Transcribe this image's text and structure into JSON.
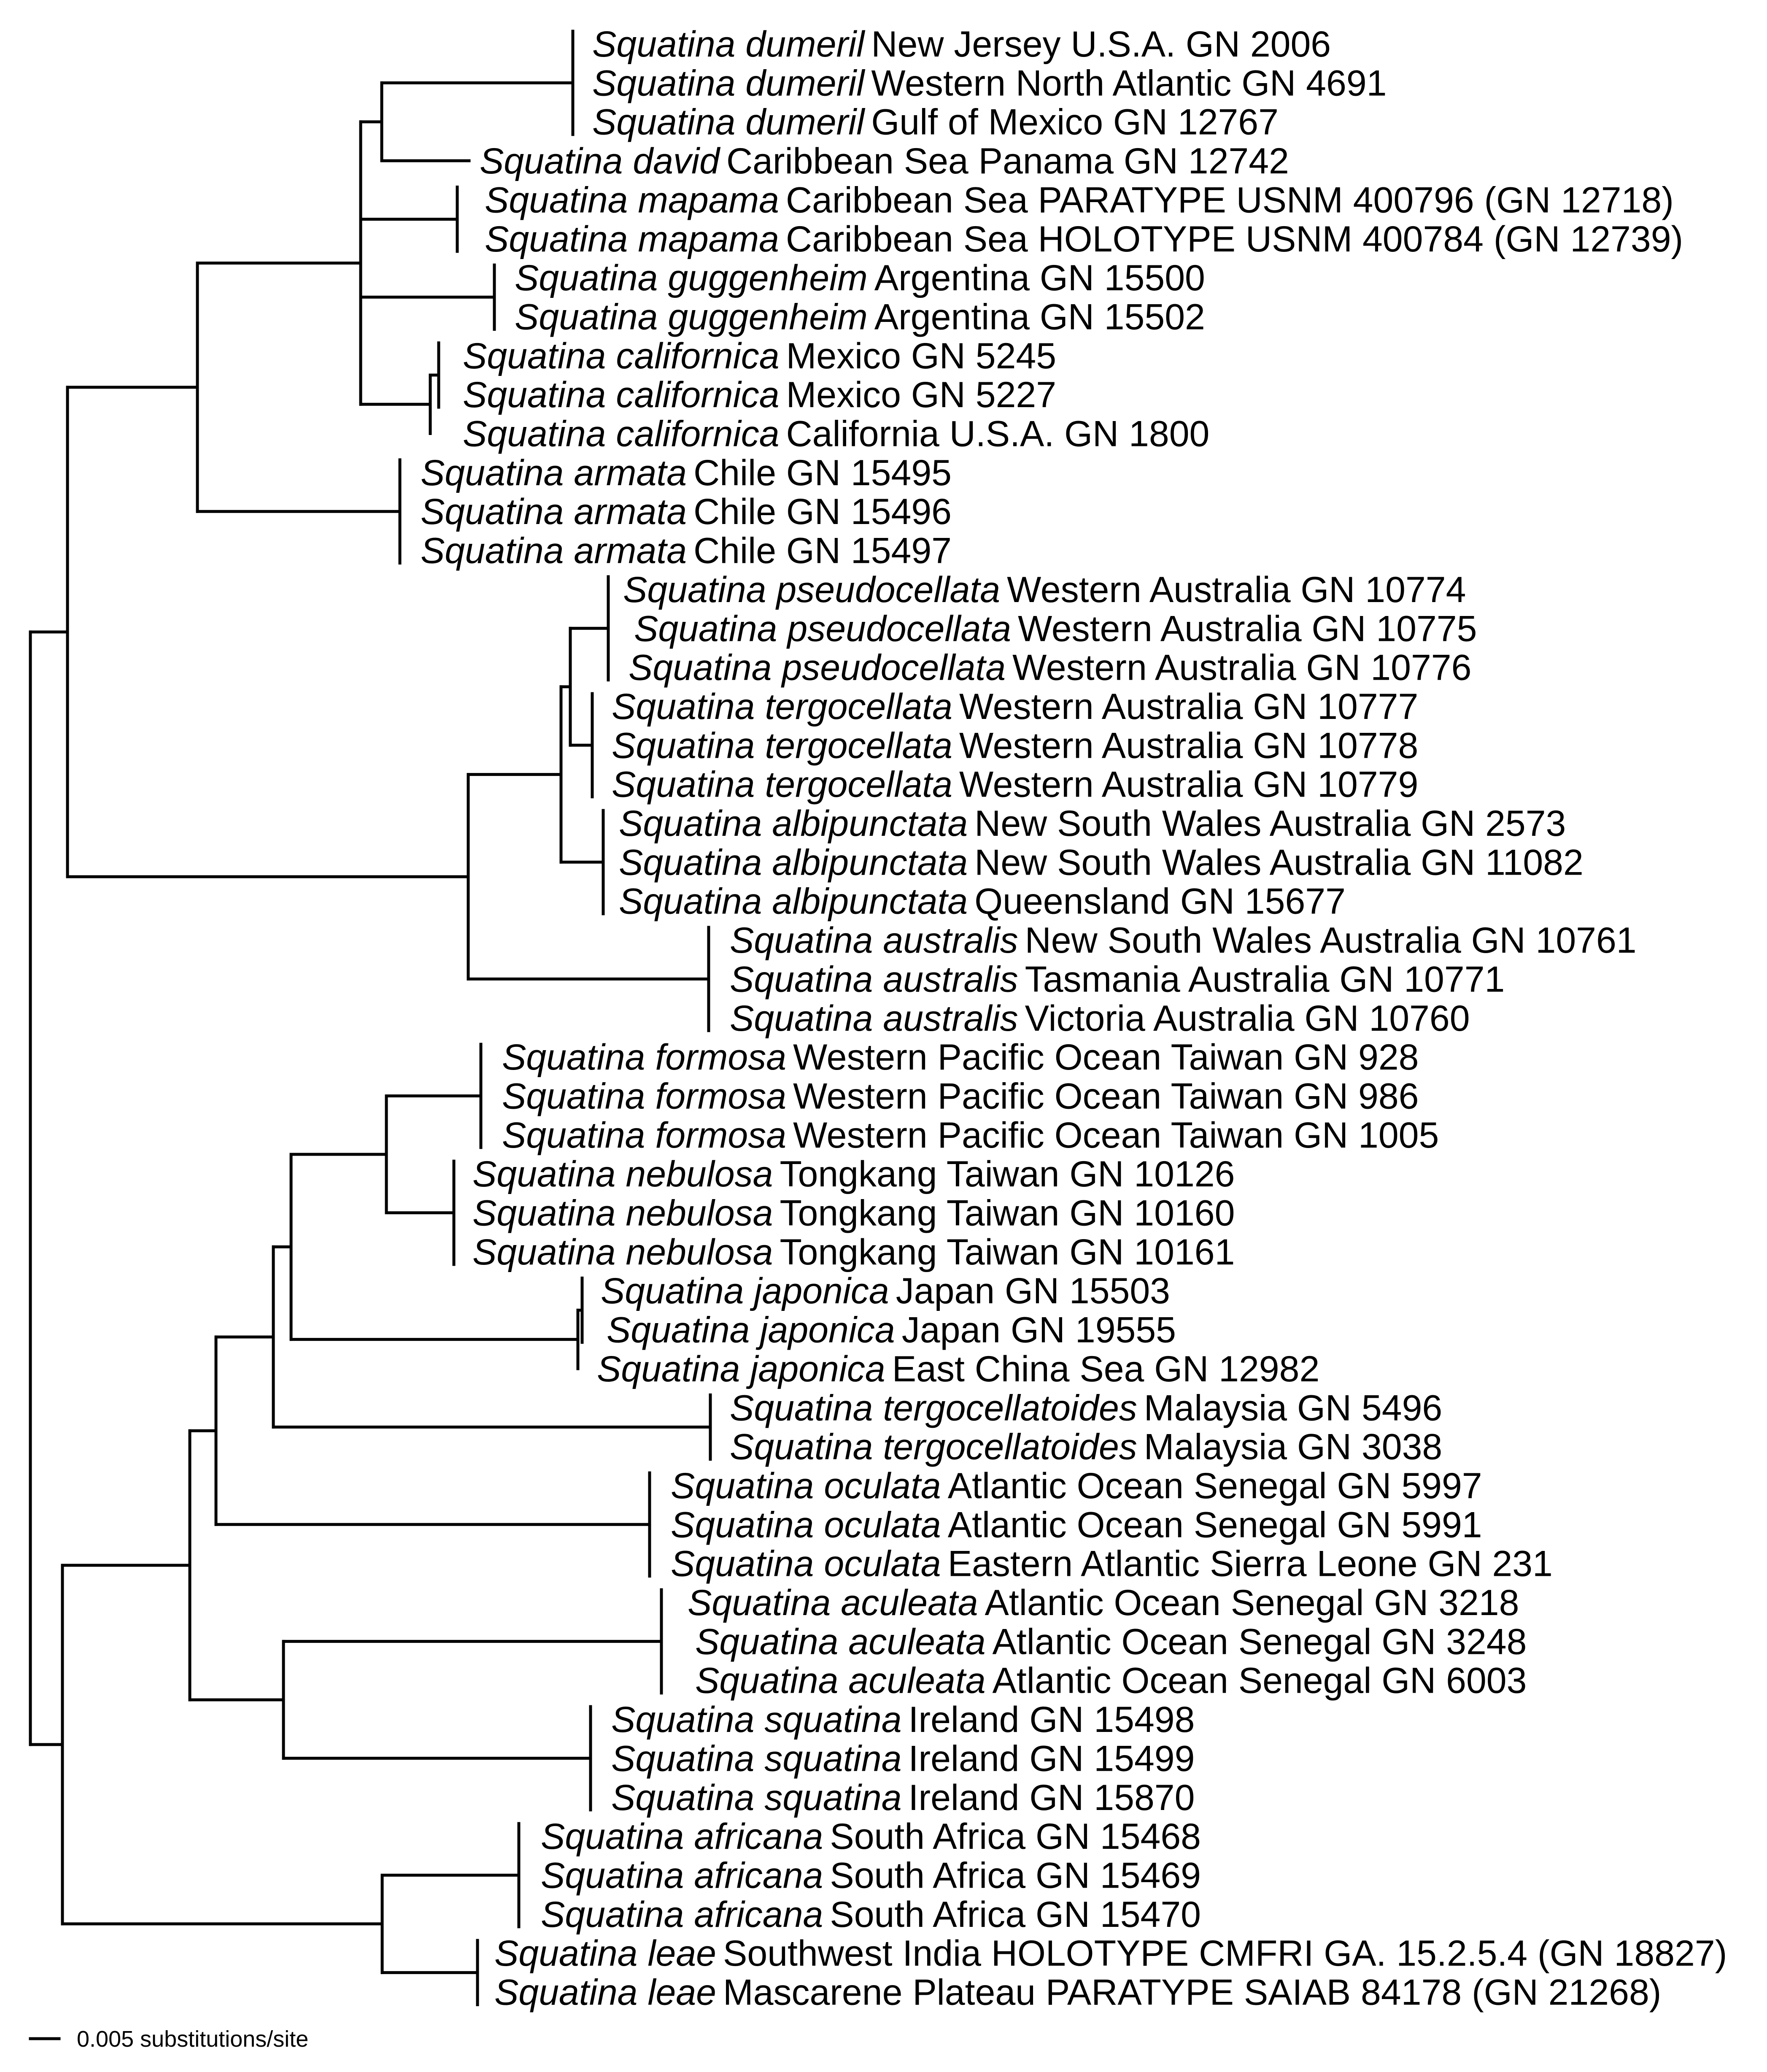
{
  "tree": {
    "leaves": [
      {
        "species": "Squatina dumeril",
        "detail": "New Jersey U.S.A. GN 2006"
      },
      {
        "species": "Squatina dumeril",
        "detail": "Western North Atlantic GN 4691"
      },
      {
        "species": "Squatina dumeril",
        "detail": "Gulf of Mexico GN 12767"
      },
      {
        "species": "Squatina david",
        "detail": "Caribbean Sea Panama GN 12742"
      },
      {
        "species": "Squatina mapama",
        "detail": "Caribbean Sea PARATYPE USNM 400796 (GN 12718)"
      },
      {
        "species": "Squatina mapama",
        "detail": "Caribbean Sea HOLOTYPE USNM 400784 (GN 12739)"
      },
      {
        "species": "Squatina guggenheim",
        "detail": "Argentina GN 15500"
      },
      {
        "species": "Squatina guggenheim",
        "detail": "Argentina GN 15502"
      },
      {
        "species": "Squatina californica",
        "detail": "Mexico GN 5245"
      },
      {
        "species": "Squatina californica",
        "detail": "Mexico GN 5227"
      },
      {
        "species": "Squatina californica",
        "detail": "California  U.S.A. GN 1800"
      },
      {
        "species": "Squatina armata",
        "detail": "Chile GN 15495"
      },
      {
        "species": "Squatina armata",
        "detail": "Chile GN 15496"
      },
      {
        "species": "Squatina armata",
        "detail": "Chile GN 15497"
      },
      {
        "species": "Squatina pseudocellata",
        "detail": "Western Australia GN 10774"
      },
      {
        "species": "Squatina pseudocellata",
        "detail": "Western Australia GN 10775"
      },
      {
        "species": "Squatina pseudocellata",
        "detail": "Western Australia GN 10776"
      },
      {
        "species": "Squatina tergocellata",
        "detail": "Western Australia GN 10777"
      },
      {
        "species": "Squatina tergocellata",
        "detail": "Western Australia GN 10778"
      },
      {
        "species": "Squatina tergocellata",
        "detail": "Western Australia GN 10779"
      },
      {
        "species": "Squatina albipunctata",
        "detail": "New South Wales Australia GN 2573"
      },
      {
        "species": "Squatina albipunctata",
        "detail": "New South Wales Australia GN 11082"
      },
      {
        "species": "Squatina albipunctata",
        "detail": "Queensland GN 15677"
      },
      {
        "species": "Squatina australis",
        "detail": "New South Wales Australia GN 10761"
      },
      {
        "species": "Squatina australis",
        "detail": "Tasmania Australia GN 10771"
      },
      {
        "species": "Squatina australis",
        "detail": "Victoria Australia GN 10760"
      },
      {
        "species": "Squatina formosa",
        "detail": "Western Pacific Ocean Taiwan GN 928"
      },
      {
        "species": "Squatina formosa",
        "detail": "Western Pacific Ocean Taiwan GN 986"
      },
      {
        "species": "Squatina formosa",
        "detail": "Western Pacific Ocean Taiwan GN 1005"
      },
      {
        "species": "Squatina nebulosa",
        "detail": "Tongkang Taiwan GN 10126"
      },
      {
        "species": "Squatina nebulosa",
        "detail": "Tongkang Taiwan GN 10160"
      },
      {
        "species": "Squatina nebulosa",
        "detail": "Tongkang Taiwan GN 10161"
      },
      {
        "species": "Squatina japonica",
        "detail": "Japan GN 15503"
      },
      {
        "species": "Squatina japonica",
        "detail": "Japan GN 19555"
      },
      {
        "species": "Squatina japonica",
        "detail": "East China Sea GN 12982"
      },
      {
        "species": "Squatina tergocellatoides",
        "detail": "Malaysia GN 5496"
      },
      {
        "species": "Squatina tergocellatoides",
        "detail": "Malaysia GN 3038"
      },
      {
        "species": "Squatina oculata",
        "detail": "Atlantic Ocean Senegal GN 5997"
      },
      {
        "species": "Squatina oculata",
        "detail": "Atlantic Ocean Senegal GN 5991"
      },
      {
        "species": "Squatina oculata",
        "detail": "Eastern Atlantic Sierra Leone GN 231"
      },
      {
        "species": "Squatina aculeata",
        "detail": "Atlantic Ocean Senegal GN 3218"
      },
      {
        "species": "Squatina aculeata",
        "detail": "Atlantic Ocean Senegal GN 3248"
      },
      {
        "species": "Squatina aculeata",
        "detail": "Atlantic Ocean Senegal GN 6003"
      },
      {
        "species": "Squatina squatina",
        "detail": "Ireland GN 15498"
      },
      {
        "species": "Squatina squatina",
        "detail": "Ireland GN 15499"
      },
      {
        "species": "Squatina squatina",
        "detail": "Ireland GN 15870"
      },
      {
        "species": "Squatina africana",
        "detail": "South Africa GN 15468"
      },
      {
        "species": "Squatina africana",
        "detail": "South Africa GN 15469"
      },
      {
        "species": "Squatina africana",
        "detail": "South Africa GN 15470"
      },
      {
        "species": "Squatina leae",
        "detail": "Southwest India HOLOTYPE CMFRI GA. 15.2.5.4 (GN 18827)"
      },
      {
        "species": "Squatina leae",
        "detail": "Mascarene Plateau PARATYPE SAIAB 84178 (GN 21268)"
      }
    ],
    "scale_bar": {
      "label": "0.005 substitutions/site"
    }
  }
}
